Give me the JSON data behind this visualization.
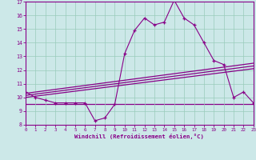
{
  "x": [
    0,
    1,
    2,
    3,
    4,
    5,
    6,
    7,
    8,
    9,
    10,
    11,
    12,
    13,
    14,
    15,
    16,
    17,
    18,
    19,
    20,
    21,
    22,
    23
  ],
  "y_main": [
    10.4,
    10.0,
    9.8,
    9.6,
    9.6,
    9.6,
    9.6,
    8.3,
    8.5,
    9.5,
    13.2,
    14.9,
    15.8,
    15.3,
    15.5,
    17.1,
    15.8,
    15.3,
    14.0,
    12.7,
    12.4,
    10.0,
    10.4,
    9.6
  ],
  "y_line1_start": 10.0,
  "y_line1_end": 12.1,
  "y_line2_start": 10.15,
  "y_line2_end": 12.3,
  "y_line3_start": 10.3,
  "y_line3_end": 12.5,
  "y_hline": 9.5,
  "color_main": "#880088",
  "bg_color": "#cce8e8",
  "grid_color": "#99ccbb",
  "xlabel": "Windchill (Refroidissement éolien,°C)",
  "ylim": [
    8,
    17
  ],
  "xlim": [
    0,
    23
  ],
  "yticks": [
    8,
    9,
    10,
    11,
    12,
    13,
    14,
    15,
    16,
    17
  ],
  "xticks": [
    0,
    1,
    2,
    3,
    4,
    5,
    6,
    7,
    8,
    9,
    10,
    11,
    12,
    13,
    14,
    15,
    16,
    17,
    18,
    19,
    20,
    21,
    22,
    23
  ]
}
